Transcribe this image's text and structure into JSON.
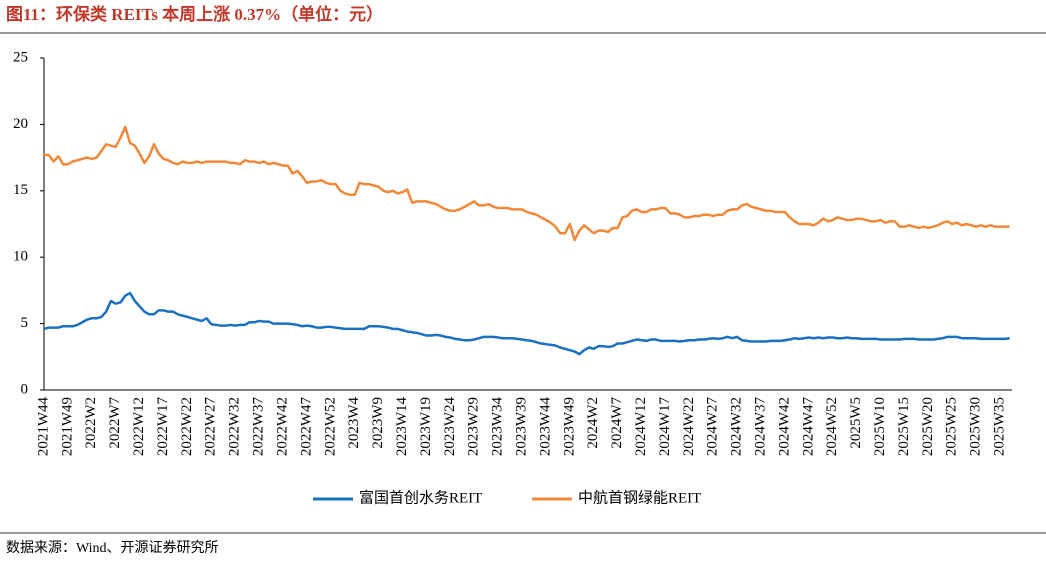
{
  "chart_data": {
    "type": "line",
    "title": "图11：环保类 REITs 本周上涨 0.37%（单位：元）",
    "source": "数据来源：Wind、开源证券研究所",
    "ylim": [
      0,
      25
    ],
    "yticks": [
      0,
      5,
      10,
      15,
      20,
      25
    ],
    "grid": false,
    "legend": "bottom",
    "categories": [
      "2021W44",
      null,
      null,
      null,
      null,
      "2021W49",
      null,
      null,
      null,
      null,
      "2022W2",
      null,
      null,
      null,
      null,
      "2022W7",
      null,
      null,
      null,
      null,
      "2022W12",
      null,
      null,
      null,
      null,
      "2022W17",
      null,
      null,
      null,
      null,
      "2022W22",
      null,
      null,
      null,
      null,
      "2022W27",
      null,
      null,
      null,
      null,
      "2022W32",
      null,
      null,
      null,
      null,
      "2022W37",
      null,
      null,
      null,
      null,
      "2022W42",
      null,
      null,
      null,
      null,
      "2022W47",
      null,
      null,
      null,
      null,
      "2022W52",
      null,
      null,
      null,
      null,
      "2023W4",
      null,
      null,
      null,
      null,
      "2023W9",
      null,
      null,
      null,
      null,
      "2023W14",
      null,
      null,
      null,
      null,
      "2023W19",
      null,
      null,
      null,
      null,
      "2023W24",
      null,
      null,
      null,
      null,
      "2023W29",
      null,
      null,
      null,
      null,
      "2023W34",
      null,
      null,
      null,
      null,
      "2023W39",
      null,
      null,
      null,
      null,
      "2023W44",
      null,
      null,
      null,
      null,
      "2023W49",
      null,
      null,
      null,
      null,
      "2024W2",
      null,
      null,
      null,
      null,
      "2024W7",
      null,
      null,
      null,
      null,
      "2024W12",
      null,
      null,
      null,
      null,
      "2024W17",
      null,
      null,
      null,
      null,
      "2024W22",
      null,
      null,
      null,
      null,
      "2024W27",
      null,
      null,
      null,
      null,
      "2024W32",
      null,
      null,
      null,
      null,
      "2024W37",
      null,
      null,
      null,
      null,
      "2024W42",
      null,
      null,
      null,
      null,
      "2024W47",
      null,
      null,
      null,
      null,
      "2024W52",
      null,
      null,
      null,
      null,
      "2025W5",
      null,
      null,
      null,
      null,
      "2025W10",
      null,
      null,
      null,
      null,
      "2025W15",
      null,
      null,
      null,
      null,
      "2025W20",
      null,
      null,
      null,
      null,
      "2025W25",
      null,
      null,
      null,
      null,
      "2025W30",
      null,
      null,
      null,
      null,
      "2025W35",
      null,
      null
    ],
    "series": [
      {
        "name": "富国首创水务REIT",
        "color": "#1a70c1",
        "values": [
          4.6,
          4.7,
          4.7,
          4.7,
          4.8,
          4.8,
          4.8,
          4.9,
          5.1,
          5.3,
          5.4,
          5.4,
          5.5,
          5.9,
          6.7,
          6.5,
          6.6,
          7.1,
          7.3,
          6.7,
          6.3,
          5.9,
          5.7,
          5.7,
          6.0,
          6.0,
          5.9,
          5.9,
          5.7,
          5.6,
          5.5,
          5.4,
          5.3,
          5.2,
          5.4,
          4.95,
          4.9,
          4.85,
          4.85,
          4.9,
          4.85,
          4.9,
          4.9,
          5.1,
          5.1,
          5.2,
          5.15,
          5.15,
          5.0,
          5.0,
          5.0,
          5.0,
          4.95,
          4.9,
          4.8,
          4.85,
          4.8,
          4.7,
          4.7,
          4.75,
          4.75,
          4.7,
          4.65,
          4.6,
          4.6,
          4.6,
          4.6,
          4.6,
          4.8,
          4.8,
          4.8,
          4.75,
          4.7,
          4.6,
          4.6,
          4.5,
          4.4,
          4.35,
          4.3,
          4.2,
          4.1,
          4.1,
          4.15,
          4.1,
          4.0,
          3.95,
          3.85,
          3.8,
          3.75,
          3.75,
          3.8,
          3.9,
          4.0,
          4.0,
          4.0,
          3.95,
          3.9,
          3.9,
          3.9,
          3.85,
          3.8,
          3.75,
          3.7,
          3.6,
          3.5,
          3.45,
          3.4,
          3.35,
          3.2,
          3.1,
          3.0,
          2.9,
          2.7,
          3.0,
          3.2,
          3.1,
          3.3,
          3.3,
          3.25,
          3.3,
          3.5,
          3.5,
          3.6,
          3.7,
          3.8,
          3.75,
          3.7,
          3.8,
          3.8,
          3.7,
          3.7,
          3.7,
          3.7,
          3.65,
          3.7,
          3.75,
          3.75,
          3.8,
          3.8,
          3.85,
          3.9,
          3.85,
          3.9,
          4.0,
          3.9,
          4.0,
          3.75,
          3.7,
          3.65,
          3.65,
          3.65,
          3.65,
          3.7,
          3.7,
          3.7,
          3.75,
          3.8,
          3.9,
          3.85,
          3.9,
          3.95,
          3.9,
          3.95,
          3.9,
          3.95,
          3.95,
          3.9,
          3.9,
          3.95,
          3.9,
          3.9,
          3.85,
          3.85,
          3.85,
          3.85,
          3.8,
          3.8,
          3.8,
          3.8,
          3.8,
          3.85,
          3.85,
          3.85,
          3.8,
          3.8,
          3.8,
          3.8,
          3.85,
          3.9,
          4.0,
          4.0,
          4.0,
          3.9,
          3.9,
          3.9,
          3.9,
          3.85,
          3.85,
          3.85,
          3.85,
          3.85,
          3.85,
          3.9
        ]
      },
      {
        "name": "中航首钢绿能REIT",
        "color": "#f0883a",
        "values": [
          17.7,
          17.7,
          17.2,
          17.6,
          17.0,
          17.0,
          17.2,
          17.3,
          17.4,
          17.5,
          17.4,
          17.5,
          18.0,
          18.5,
          18.4,
          18.3,
          19.0,
          19.8,
          18.6,
          18.4,
          17.8,
          17.1,
          17.6,
          18.5,
          17.8,
          17.4,
          17.3,
          17.1,
          17.0,
          17.2,
          17.1,
          17.1,
          17.2,
          17.1,
          17.2,
          17.2,
          17.2,
          17.2,
          17.2,
          17.1,
          17.1,
          17.0,
          17.3,
          17.2,
          17.2,
          17.1,
          17.2,
          17.0,
          17.1,
          17.0,
          16.9,
          16.9,
          16.3,
          16.5,
          16.1,
          15.6,
          15.7,
          15.7,
          15.8,
          15.6,
          15.5,
          15.5,
          15.0,
          14.8,
          14.7,
          14.7,
          15.6,
          15.5,
          15.5,
          15.4,
          15.3,
          15.0,
          14.9,
          15.0,
          14.8,
          14.9,
          15.1,
          14.1,
          14.2,
          14.2,
          14.2,
          14.1,
          14.0,
          13.8,
          13.6,
          13.5,
          13.5,
          13.6,
          13.8,
          14.0,
          14.2,
          13.9,
          13.9,
          14.0,
          13.8,
          13.7,
          13.7,
          13.7,
          13.6,
          13.6,
          13.6,
          13.4,
          13.3,
          13.2,
          13.0,
          12.8,
          12.6,
          12.3,
          11.8,
          11.8,
          12.5,
          11.3,
          12.0,
          12.4,
          12.1,
          11.8,
          12.0,
          12.0,
          11.9,
          12.2,
          12.2,
          13.0,
          13.1,
          13.5,
          13.6,
          13.4,
          13.4,
          13.6,
          13.6,
          13.7,
          13.7,
          13.3,
          13.3,
          13.2,
          13.0,
          13.0,
          13.1,
          13.1,
          13.2,
          13.2,
          13.1,
          13.2,
          13.2,
          13.5,
          13.6,
          13.6,
          13.9,
          14.0,
          13.8,
          13.7,
          13.6,
          13.5,
          13.5,
          13.4,
          13.4,
          13.4,
          13.0,
          12.7,
          12.5,
          12.5,
          12.5,
          12.4,
          12.6,
          12.9,
          12.7,
          12.8,
          13.0,
          12.9,
          12.8,
          12.8,
          12.9,
          12.9,
          12.8,
          12.7,
          12.7,
          12.8,
          12.6,
          12.7,
          12.7,
          12.3,
          12.3,
          12.4,
          12.3,
          12.2,
          12.3,
          12.2,
          12.3,
          12.4,
          12.6,
          12.7,
          12.5,
          12.6,
          12.4,
          12.5,
          12.4,
          12.3,
          12.4,
          12.3,
          12.4,
          12.3,
          12.3,
          12.3,
          12.3
        ]
      }
    ]
  }
}
